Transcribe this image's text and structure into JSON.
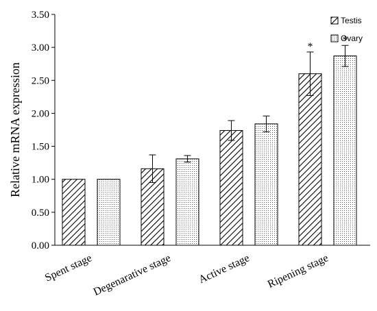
{
  "chart_data": {
    "type": "bar",
    "ylabel": "Relative mRNA expression",
    "ylim": [
      0,
      3.5
    ],
    "yticks": [
      "0.00",
      "0.50",
      "1.00",
      "1.50",
      "2.00",
      "2.50",
      "3.00",
      "3.50"
    ],
    "categories": [
      "Spent stage",
      "Degenarative stage",
      "Active stage",
      "Ripening stage"
    ],
    "series": [
      {
        "name": "Testis",
        "pattern": "diagonal-hatch",
        "values": [
          1.0,
          1.16,
          1.74,
          2.6
        ],
        "errors": [
          0.0,
          0.21,
          0.15,
          0.33
        ],
        "significance": [
          "",
          "",
          "",
          "*"
        ]
      },
      {
        "name": "Ovary",
        "pattern": "dotted",
        "values": [
          1.0,
          1.31,
          1.84,
          2.87
        ],
        "errors": [
          0.0,
          0.05,
          0.12,
          0.16
        ],
        "significance": [
          "",
          "",
          "",
          "*"
        ]
      }
    ],
    "grid": false,
    "legend_position": "top-right"
  },
  "colors": {
    "bar_stroke": "#000000",
    "hatch": "#000000",
    "dots": "#555555",
    "bar_fill": "#ffffff"
  }
}
